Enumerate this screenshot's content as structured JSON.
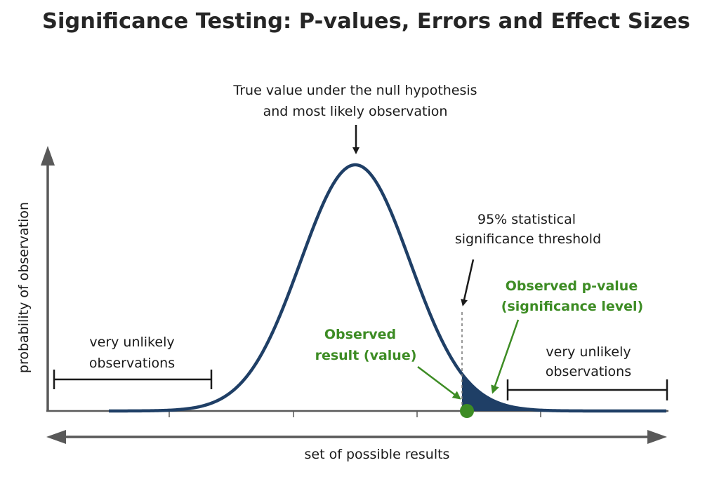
{
  "title": "Significance Testing: P-values, Errors and Effect Sizes",
  "y_axis_label": "probability of observation",
  "x_axis_label": "set of possible results",
  "annotations": {
    "null_value": [
      "True value under the null hypothesis",
      "and most likely observation"
    ],
    "threshold": [
      "95% statistical",
      "significance threshold"
    ],
    "p_value": [
      "Observed p-value",
      "(significance level)"
    ],
    "observed_result": [
      "Observed",
      "result (value)"
    ],
    "unlikely_left": [
      "very unlikely",
      "observations"
    ],
    "unlikely_right": [
      "very unlikely",
      "observations"
    ]
  },
  "colors": {
    "curve": "#1f3f66",
    "tail_fill": "#1f3f66",
    "observed_point": "#3d8c24",
    "green_text": "#3d8c24",
    "axis": "#595959",
    "arrow": "#1a1a1a"
  }
}
